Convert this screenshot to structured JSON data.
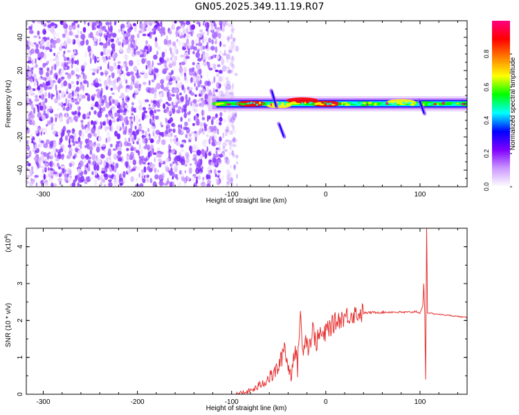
{
  "title": "GN05.2025.349.11.19.R07",
  "chart_data": [
    {
      "type": "heatmap",
      "title": "GN05.2025.349.11.19.R07",
      "xlabel": "Height of straight line (km)",
      "ylabel": "Frequency (Hz)",
      "xlim": [
        -318,
        150
      ],
      "ylim": [
        -50,
        50
      ],
      "x_ticks": [
        -300,
        -200,
        -100,
        0,
        100
      ],
      "x_tick_labels": [
        "-300",
        "-200",
        "-100",
        "0",
        "100"
      ],
      "y_ticks": [
        -40,
        -20,
        0,
        20,
        40
      ],
      "y_tick_labels": [
        "-40",
        "-20",
        "0",
        "20",
        "40"
      ],
      "colorbar": {
        "label": "Normalized spectral amplitude",
        "range": [
          0,
          1
        ],
        "ticks": [
          0.0,
          0.2,
          0.4,
          0.6,
          0.8
        ],
        "tick_labels": [
          "0.0",
          "0.2",
          "0.4",
          "0.6",
          "0.8"
        ],
        "colors": [
          "#ffffff",
          "#cc99ff",
          "#8000ff",
          "#0000ff",
          "#00ffff",
          "#00ff00",
          "#ffff00",
          "#ff8000",
          "#ff0000",
          "#ff0080"
        ]
      },
      "noise_region_x": [
        -318,
        -100
      ],
      "main_band": {
        "x_start": -125,
        "x_end": 150,
        "center_freq": 0,
        "description_points": [
          {
            "x": -110,
            "freq": 0,
            "amp": 0.5
          },
          {
            "x": -80,
            "freq": 0,
            "amp": 0.9
          },
          {
            "x": -50,
            "freq": -1,
            "amp": 0.7
          },
          {
            "x": -25,
            "freq": 2,
            "amp": 0.95
          },
          {
            "x": 0,
            "freq": 0,
            "amp": 0.9
          },
          {
            "x": 40,
            "freq": 0,
            "amp": 0.5
          },
          {
            "x": 80,
            "freq": 1,
            "amp": 0.85
          },
          {
            "x": 105,
            "freq": 0,
            "amp": 0.6
          },
          {
            "x": 150,
            "freq": 0,
            "amp": 0.45
          }
        ]
      },
      "streaks": [
        {
          "x": -55,
          "freq_start": 8,
          "freq_end": -2
        },
        {
          "x": -47,
          "freq_start": -12,
          "freq_end": -20
        },
        {
          "x": 102,
          "freq_start": 2,
          "freq_end": -6
        }
      ]
    },
    {
      "type": "line",
      "xlabel": "Height of straight line (km)",
      "ylabel": "SNR (10 * v/v)",
      "y_multiplier_label": "(x10",
      "y_multiplier_exp": "4",
      "xlim": [
        -318,
        150
      ],
      "ylim": [
        0,
        4.5
      ],
      "x_ticks": [
        -300,
        -200,
        -100,
        0,
        100
      ],
      "x_tick_labels": [
        "-300",
        "-200",
        "-100",
        "0",
        "100"
      ],
      "y_ticks": [
        0,
        1,
        2,
        3,
        4
      ],
      "y_tick_labels": [
        "0",
        "1",
        "2",
        "3",
        "4"
      ],
      "series": [
        {
          "color": "#e53030",
          "x": [
            -318,
            -250,
            -200,
            -150,
            -110,
            -95,
            -85,
            -75,
            -65,
            -55,
            -48,
            -44,
            -40,
            -37,
            -33,
            -30,
            -27,
            -25,
            -22,
            -18,
            -14,
            -10,
            -6,
            -2,
            2,
            6,
            10,
            15,
            20,
            25,
            30,
            40,
            50,
            60,
            70,
            80,
            90,
            96,
            100,
            103,
            104,
            105,
            106,
            107,
            108,
            109,
            110,
            115,
            130,
            150
          ],
          "values": [
            0.0,
            0.0,
            0.0,
            0.0,
            0.0,
            0.0,
            0.05,
            0.15,
            0.35,
            0.55,
            0.85,
            1.35,
            0.75,
            0.5,
            1.3,
            0.7,
            2.35,
            1.1,
            1.6,
            1.25,
            1.75,
            1.4,
            1.65,
            1.55,
            1.8,
            1.85,
            1.95,
            2.05,
            2.1,
            2.15,
            2.18,
            2.2,
            2.22,
            2.22,
            2.23,
            2.22,
            2.22,
            2.25,
            2.2,
            2.4,
            3.0,
            2.2,
            0.4,
            4.5,
            2.2,
            2.2,
            2.2,
            2.18,
            2.14,
            2.08
          ]
        }
      ]
    }
  ]
}
